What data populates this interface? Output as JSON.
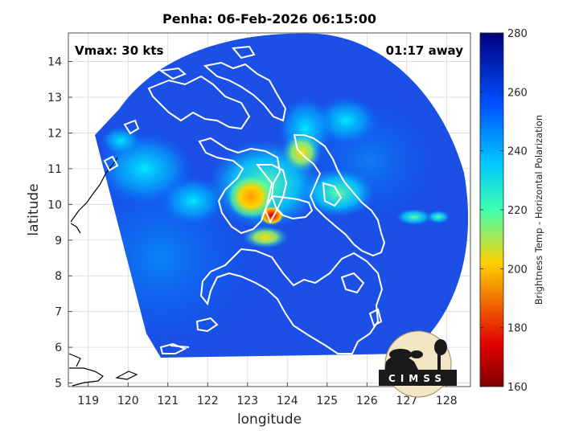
{
  "chart_data": {
    "type": "heatmap",
    "title": "Penha: 06-Feb-2026 06:15:00",
    "xlabel": "longitude",
    "ylabel": "latitude",
    "xlim": [
      118.5,
      128.6
    ],
    "ylim": [
      4.9,
      14.8
    ],
    "xticks": [
      "119",
      "120",
      "121",
      "122",
      "123",
      "124",
      "125",
      "126",
      "127",
      "128"
    ],
    "yticks": [
      "5",
      "6",
      "7",
      "8",
      "9",
      "10",
      "11",
      "12",
      "13",
      "14"
    ],
    "grid": true,
    "annotations": {
      "vmax": "Vmax: 30 kts",
      "away": "01:17 away"
    },
    "colorbar": {
      "label": "Brightness Temp - Horizontal Polarization",
      "min": 160,
      "max": 280,
      "ticks": [
        "160",
        "180",
        "200",
        "220",
        "240",
        "260",
        "280"
      ],
      "colormap": [
        "#7f0000",
        "#ff0000",
        "#ffff00",
        "#00ffff",
        "#0040ff",
        "#00007f"
      ]
    },
    "field": {
      "background_value": 262,
      "features": [
        {
          "name": "cold core west",
          "lon": 122.9,
          "lat": 10.3,
          "value": 192
        },
        {
          "name": "cold core east",
          "lon": 123.6,
          "lat": 9.7,
          "value": 170
        },
        {
          "name": "cold band south",
          "lon": 123.3,
          "lat": 9.2,
          "value": 208
        },
        {
          "name": "convection north",
          "lon": 124.3,
          "lat": 11.5,
          "value": 225
        },
        {
          "name": "convection central",
          "lon": 123.8,
          "lat": 10.6,
          "value": 235
        },
        {
          "name": "convection west",
          "lon": 120.9,
          "lat": 11.0,
          "value": 244
        },
        {
          "name": "convection east",
          "lon": 127.3,
          "lat": 9.6,
          "value": 238
        }
      ]
    }
  },
  "logo": {
    "text": "CIMSS"
  },
  "colors": {
    "text": "#000000",
    "axis": "#262626",
    "grid": "#d9d9d9",
    "coast_on_data": "#ffffff",
    "coast_off_data": "#000000"
  }
}
